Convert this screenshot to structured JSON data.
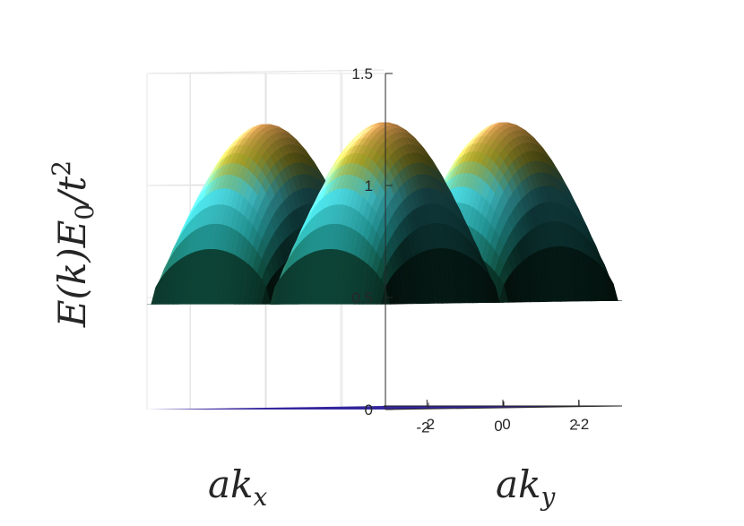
{
  "chart_data": {
    "type": "surface",
    "zlabel_main": "E(k)E",
    "zlabel_sub": "0",
    "zlabel_tail": "/t",
    "zlabel_sup": "2",
    "xlabel_main": "ak",
    "xlabel_sub": "x",
    "ylabel_main": "ak",
    "ylabel_sub": "y",
    "z_ticks": [
      "0",
      "0.5",
      "1",
      "1.5"
    ],
    "z_tick_values": [
      0,
      0.5,
      1,
      1.5
    ],
    "x_ticks": [
      "-2",
      "0",
      "2"
    ],
    "x_tick_values": [
      -2,
      0,
      2
    ],
    "y_ticks": [
      "-2",
      "0",
      "2"
    ],
    "y_tick_values": [
      -2,
      0,
      2
    ],
    "xlim": [
      -3.14159,
      3.14159
    ],
    "ylim": [
      -3.14159,
      3.14159
    ],
    "zlim": [
      0,
      1.5
    ],
    "grid": true,
    "surface": {
      "formula": "E = 0.47 + 0.80 * (|sin(kx)*sin(ky)|)^0.55",
      "z_min": 0.47,
      "z_max": 1.27,
      "peaks_at": "|kx| = |ky| = pi/2",
      "colormap": [
        "#0a2a1e",
        "#16705c",
        "#2ab8b8",
        "#4ee6ee",
        "#a8a428",
        "#c88a48"
      ]
    },
    "floor_plane": {
      "z": 0,
      "color": "#35269c"
    }
  }
}
